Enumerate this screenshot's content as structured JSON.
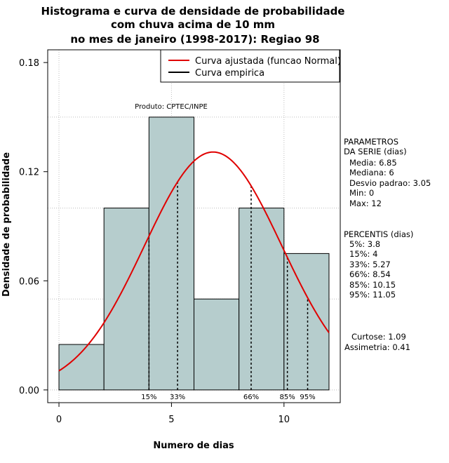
{
  "title_lines": [
    "Histograma e curva de densidade de probabilidade",
    "com chuva acima de 10 mm",
    "no mes de janeiro (1998-2017): Regiao 98"
  ],
  "chart_data": {
    "type": "bar",
    "xlabel": "Numero de dias",
    "ylabel": "Densidade de probabilidade",
    "xlim": [
      -0.5,
      12.5
    ],
    "ylim": [
      -0.007,
      0.187
    ],
    "x_ticks": [
      0,
      5,
      10
    ],
    "y_ticks": [
      0.0,
      0.06,
      0.12,
      0.18
    ],
    "y_tick_labels": [
      "0.00",
      "0.06",
      "0.12",
      "0.18"
    ],
    "grid": true,
    "bins": [
      {
        "start": 0,
        "end": 2,
        "density": 0.025
      },
      {
        "start": 2,
        "end": 4,
        "density": 0.1
      },
      {
        "start": 4,
        "end": 6,
        "density": 0.15
      },
      {
        "start": 6,
        "end": 8,
        "density": 0.05
      },
      {
        "start": 8,
        "end": 10,
        "density": 0.1
      },
      {
        "start": 10,
        "end": 12,
        "density": 0.075
      }
    ],
    "normal_curve": {
      "mean": 6.85,
      "sd": 3.05,
      "x_range": [
        0,
        12
      ],
      "color": "#e00000"
    },
    "bar_color": "#b6cdcd",
    "legend": {
      "position": "top-right",
      "items": [
        {
          "label": "Curva ajustada (funcao Normal)",
          "color": "#e00000"
        },
        {
          "label": "Curva empirica",
          "color": "#000000"
        }
      ]
    },
    "annotation": "Produto: CPTEC/INPE",
    "percentile_lines": [
      {
        "label": "15%",
        "x": 4
      },
      {
        "label": "33%",
        "x": 5.27
      },
      {
        "label": "66%",
        "x": 8.54
      },
      {
        "label": "85%",
        "x": 10.15
      },
      {
        "label": "95%",
        "x": 11.05
      }
    ]
  },
  "parametros": {
    "title_lines": [
      "PARAMETROS",
      "DA SERIE (dias)"
    ],
    "items": [
      "Media: 6.85",
      "Mediana: 6",
      "Desvio padrao: 3.05",
      "Min: 0",
      "Max: 12"
    ]
  },
  "percentis": {
    "title": "PERCENTIS (dias)",
    "items": [
      "5%: 3.8",
      "15%: 4",
      "33%: 5.27",
      "66%: 8.54",
      "85%: 10.15",
      "95%: 11.05"
    ]
  },
  "shape": {
    "curtose": "Curtose: 1.09",
    "assimetria": "Assimetria: 0.41"
  }
}
